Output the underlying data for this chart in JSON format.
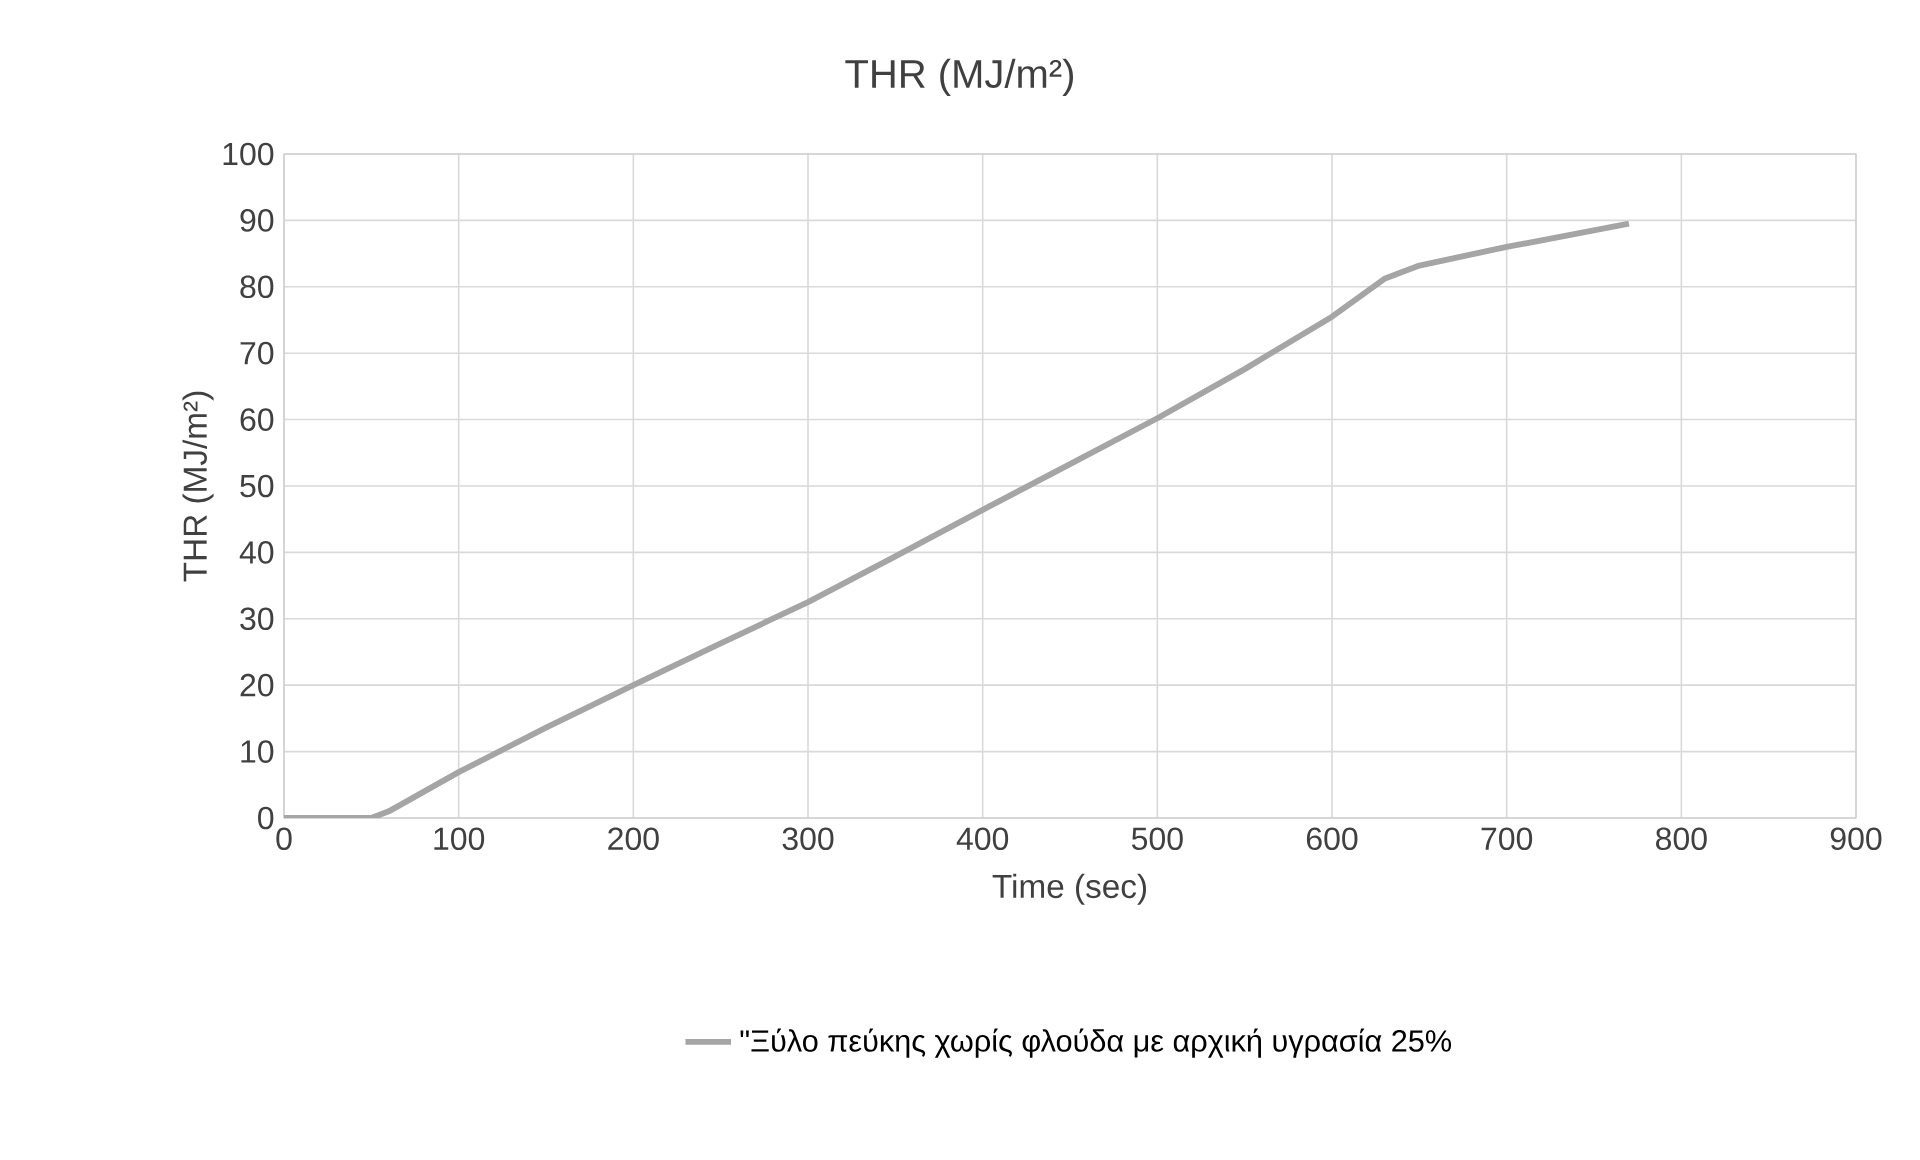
{
  "chart_data": {
    "type": "line",
    "title": "THR (MJ/m²)",
    "xlabel": "Time (sec)",
    "ylabel": "THR (MJ/m²)",
    "xlim": [
      0,
      900
    ],
    "xticks": [
      0,
      100,
      200,
      300,
      400,
      500,
      600,
      700,
      800,
      900
    ],
    "ylim": [
      0,
      100
    ],
    "yticks": [
      0,
      10,
      20,
      30,
      40,
      50,
      60,
      70,
      80,
      90,
      100
    ],
    "grid": true,
    "legend": "bottom",
    "line_style": "solid",
    "marker": "none",
    "series": [
      {
        "name": "\"Ξύλο πεύκης χωρίς φλούδα με αρχική υγρασία 25%",
        "color": "#a5a5a5",
        "x": [
          0,
          50,
          60,
          100,
          150,
          200,
          250,
          300,
          350,
          400,
          450,
          500,
          550,
          600,
          630,
          650,
          700,
          770
        ],
        "values": [
          0,
          0,
          1,
          6.9,
          13.6,
          20,
          26.3,
          32.5,
          39.4,
          46.4,
          53.3,
          60.2,
          67.6,
          75.5,
          81.2,
          83.2,
          86,
          89.5
        ]
      }
    ]
  }
}
